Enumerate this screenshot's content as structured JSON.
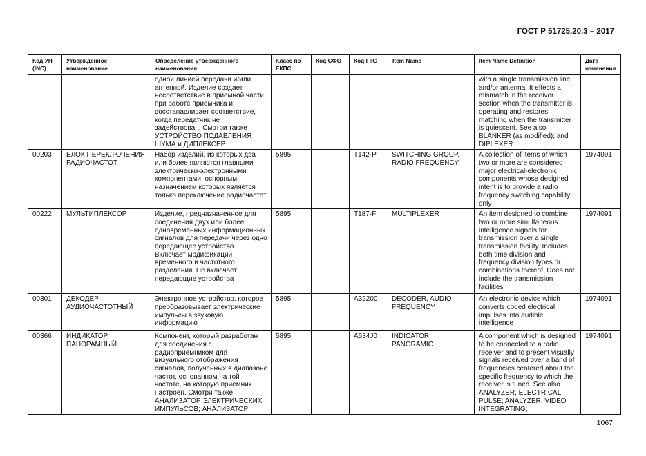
{
  "header": {
    "standard": "ГОСТ Р 51725.20.3 – 2017"
  },
  "footer": {
    "page_number": "1067"
  },
  "table": {
    "columns": [
      "Код УН\n(INC)",
      "Утвержденное\nнаименование",
      "Определение утвержденного\nнаименования",
      "Класс по\nЕКПС",
      "Код СФО",
      "Код FIIG",
      "Item Name",
      "Item Name Definition",
      "Дата\nизменения"
    ],
    "rows": [
      [
        "",
        "",
        "одной линией передачи и/или\nантенной. Изделие создает\nнесоответствие в приемной части\nпри работе приемника и\nвосстанавливает соответствие,\nкогда передатчик не\nзадействован. Смотри также\nУСТРОЙСТВО ПОДАВЛЕНИЯ\nШУМА и ДИПЛЕКСЕР",
        "",
        "",
        "",
        "",
        "with a single transmission line\nand/or antenna. It effects a\nmismatch in the receiver\nsection when the transmitter is\noperating and restores\nmatching when the transmitter\nis quiescent. See also\nBLANKER (as modified); and\nDIPLEXER",
        ""
      ],
      [
        "00203",
        "БЛОК ПЕРЕКЛЮЧЕНИЯ\nРАДИОЧАСТОТ",
        "Набор изделий, из которых два\nили более являются главными\nэлектрически-электронными\nкомпонентами, основным\nназначением которых является\nтолько переключение радиочастот",
        "5895",
        "",
        "T142-P",
        "SWITCHING GROUP,\nRADIO FREQUENCY",
        "A collection of items of which\ntwo or more are considered\nmajor electrical-electronic\ncomponents whose designed\nintent is to provide a radio\nfrequency switching capability\nonly",
        "1974091"
      ],
      [
        "00222",
        "МУЛЬТИПЛЕКСОР",
        "Изделие, предназначенное для\nсоединения двух или более\nодновременных информационных\nсигналов для передачи через одно\nпередающее устройство.\nВключает модификации\nвременного и частотного\nразделения. Не включает\nпередающие устройства",
        "5895",
        "",
        "T187-F",
        "MULTIPLEXER",
        "An item designed to combine\ntwo or more simultaneous\nintelligence signals for\ntransmission over a single\ntransmission facility. Includes\nboth time division and\nfrequency division types or\ncombinations thereof. Does not\ninclude the transmission\nfacilities",
        "1974091"
      ],
      [
        "00301",
        "ДЕКОДЕР\nАУДИОЧАСТОТНЫЙ",
        "Электронное устройство, которое\nпреобразовывает электрические\nимпульсы в звуковую\nинформацию",
        "5895",
        "",
        "A32200",
        "DECODER, AUDIO\nFREQUENCY",
        "An electronic device which\nconverts coded electrical\nimpulses into audible\nintelligence",
        "1974091"
      ],
      [
        "00366",
        "ИНДИКАТОР\nПАНОРАМНЫЙ",
        "Компонент, который разработан\nдля соединения с\nрадиоприемником для\nвизуального отображения\nсигналов, полученных в диапазоне\nчастот, основанном на той\nчастоте, на которую приемник\nнастроен. Смотри также\nАНАЛИЗАТОР ЭЛЕКТРИЧЕСКИХ\nИМПУЛЬСОВ; АНАЛИЗАТОР",
        "5895",
        "",
        "A534J0",
        "INDICATOR,\nPANORAMIC",
        "A component which is designed\nto be connected to a radio\nreceiver and to present visually\nsignals received over a band of\nfrequencies centered about the\nspecific frequency to which the\nreceiver is tuned. See also\nANALYZER, ELECTRICAL\nPULSE; ANALYZER, VIDEO\nINTEGRATING;",
        "1974091"
      ]
    ]
  }
}
